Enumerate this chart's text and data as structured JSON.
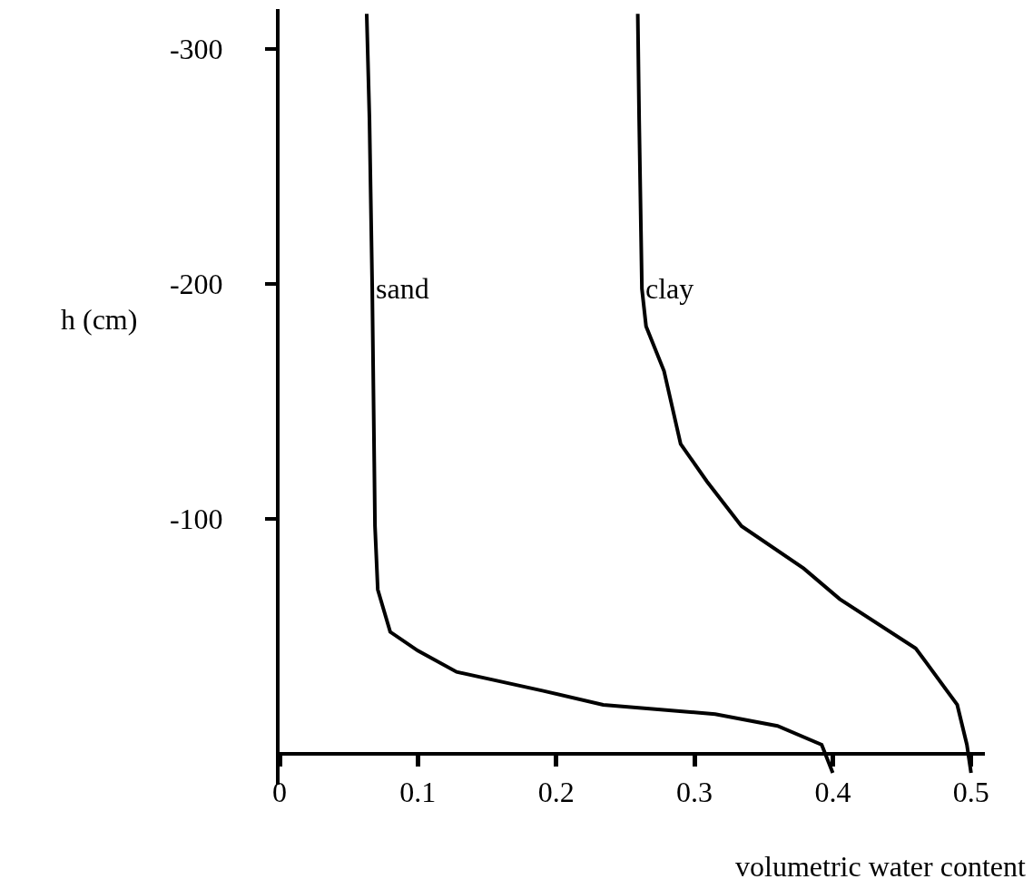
{
  "chart_data": {
    "type": "line",
    "xlabel": "volumetric water content",
    "ylabel": "h (cm)",
    "xlim": [
      0,
      0.51
    ],
    "xticks": [
      0,
      0.1,
      0.2,
      0.3,
      0.4,
      0.5
    ],
    "ylim": [
      13,
      -317
    ],
    "yticks": [
      -300,
      -200,
      -100
    ],
    "grid": false,
    "legend": false,
    "marker": "none",
    "line_style": "solid",
    "series": [
      {
        "name": "sand",
        "color": "#000000",
        "x": [
          0.063,
          0.065,
          0.067,
          0.069,
          0.071,
          0.08,
          0.1,
          0.128,
          0.19,
          0.234,
          0.315,
          0.36,
          0.392,
          0.4
        ],
        "values": [
          -315,
          -270,
          -198,
          -97,
          -70,
          -52,
          -44,
          -35,
          -27,
          -21,
          -17,
          -12,
          -4,
          8
        ]
      },
      {
        "name": "clay",
        "color": "#000000",
        "x": [
          0.259,
          0.26,
          0.262,
          0.265,
          0.278,
          0.29,
          0.309,
          0.334,
          0.379,
          0.405,
          0.46,
          0.49,
          0.497,
          0.5
        ],
        "values": [
          -315,
          -270,
          -198,
          -182,
          -163,
          -132,
          -116,
          -97,
          -79,
          -66,
          -45,
          -21,
          -4,
          8
        ]
      }
    ]
  }
}
